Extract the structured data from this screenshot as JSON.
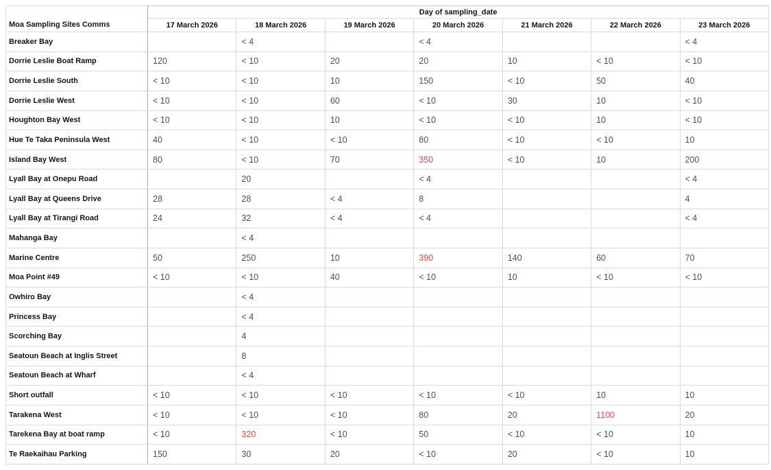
{
  "chart_data": {
    "type": "table",
    "corner_header": "Moa Sampling Sites Comms",
    "column_group_header": "Day of sampling_date",
    "columns": [
      "17 March 2026",
      "18 March 2026",
      "19 March 2026",
      "20 March 2026",
      "21 March 2026",
      "22 March 2026",
      "23 March 2026"
    ],
    "highlight_color": "#e9473d",
    "rows": [
      {
        "site": "Breaker Bay",
        "values": [
          "",
          "< 4",
          "",
          "< 4",
          "",
          "",
          "< 4"
        ],
        "highlighted": []
      },
      {
        "site": "Dorrie Leslie Boat Ramp",
        "values": [
          "120",
          "< 10",
          "20",
          "20",
          "10",
          "< 10",
          "< 10"
        ],
        "highlighted": []
      },
      {
        "site": "Dorrie Leslie South",
        "values": [
          "< 10",
          "< 10",
          "10",
          "150",
          "< 10",
          "50",
          "40"
        ],
        "highlighted": []
      },
      {
        "site": "Dorrie Leslie West",
        "values": [
          "< 10",
          "< 10",
          "60",
          "< 10",
          "30",
          "10",
          "< 10"
        ],
        "highlighted": []
      },
      {
        "site": "Houghton Bay West",
        "values": [
          "< 10",
          "< 10",
          "10",
          "< 10",
          "< 10",
          "10",
          "< 10"
        ],
        "highlighted": []
      },
      {
        "site": "Hue Te Taka Peninsula West",
        "values": [
          "40",
          "< 10",
          "< 10",
          "80",
          "< 10",
          "< 10",
          "10"
        ],
        "highlighted": []
      },
      {
        "site": "Island Bay West",
        "values": [
          "80",
          "< 10",
          "70",
          "350",
          "< 10",
          "10",
          "200"
        ],
        "highlighted": [
          3
        ]
      },
      {
        "site": "Lyall Bay at Onepu Road",
        "values": [
          "",
          "20",
          "",
          "< 4",
          "",
          "",
          "< 4"
        ],
        "highlighted": []
      },
      {
        "site": "Lyall Bay at Queens Drive",
        "values": [
          "28",
          "28",
          "< 4",
          "8",
          "",
          "",
          "4"
        ],
        "highlighted": []
      },
      {
        "site": "Lyall Bay at Tirangi Road",
        "values": [
          "24",
          "32",
          "< 4",
          "< 4",
          "",
          "",
          "< 4"
        ],
        "highlighted": []
      },
      {
        "site": "Mahanga Bay",
        "values": [
          "",
          "< 4",
          "",
          "",
          "",
          "",
          ""
        ],
        "highlighted": []
      },
      {
        "site": "Marine Centre",
        "values": [
          "50",
          "250",
          "10",
          "390",
          "140",
          "60",
          "70"
        ],
        "highlighted": [
          3
        ]
      },
      {
        "site": "Moa Point #49",
        "values": [
          "< 10",
          "< 10",
          "40",
          "< 10",
          "10",
          "< 10",
          "< 10"
        ],
        "highlighted": []
      },
      {
        "site": "Owhiro Bay",
        "values": [
          "",
          "< 4",
          "",
          "",
          "",
          "",
          ""
        ],
        "highlighted": []
      },
      {
        "site": "Princess Bay",
        "values": [
          "",
          "< 4",
          "",
          "",
          "",
          "",
          ""
        ],
        "highlighted": []
      },
      {
        "site": "Scorching Bay",
        "values": [
          "",
          "4",
          "",
          "",
          "",
          "",
          ""
        ],
        "highlighted": []
      },
      {
        "site": "Seatoun Beach at Inglis Street",
        "values": [
          "",
          "8",
          "",
          "",
          "",
          "",
          ""
        ],
        "highlighted": []
      },
      {
        "site": "Seatoun Beach at Wharf",
        "values": [
          "",
          "< 4",
          "",
          "",
          "",
          "",
          ""
        ],
        "highlighted": []
      },
      {
        "site": "Short outfall",
        "values": [
          "< 10",
          "< 10",
          "< 10",
          "< 10",
          "< 10",
          "10",
          "10"
        ],
        "highlighted": []
      },
      {
        "site": "Tarakena West",
        "values": [
          "< 10",
          "< 10",
          "< 10",
          "80",
          "20",
          "1100",
          "20"
        ],
        "highlighted": [
          5
        ]
      },
      {
        "site": "Tarekena Bay at boat ramp",
        "values": [
          "< 10",
          "320",
          "< 10",
          "50",
          "< 10",
          "< 10",
          "10"
        ],
        "highlighted": [
          1
        ]
      },
      {
        "site": "Te Raekaihau Parking",
        "values": [
          "150",
          "30",
          "20",
          "< 10",
          "20",
          "< 10",
          "10"
        ],
        "highlighted": []
      }
    ]
  }
}
